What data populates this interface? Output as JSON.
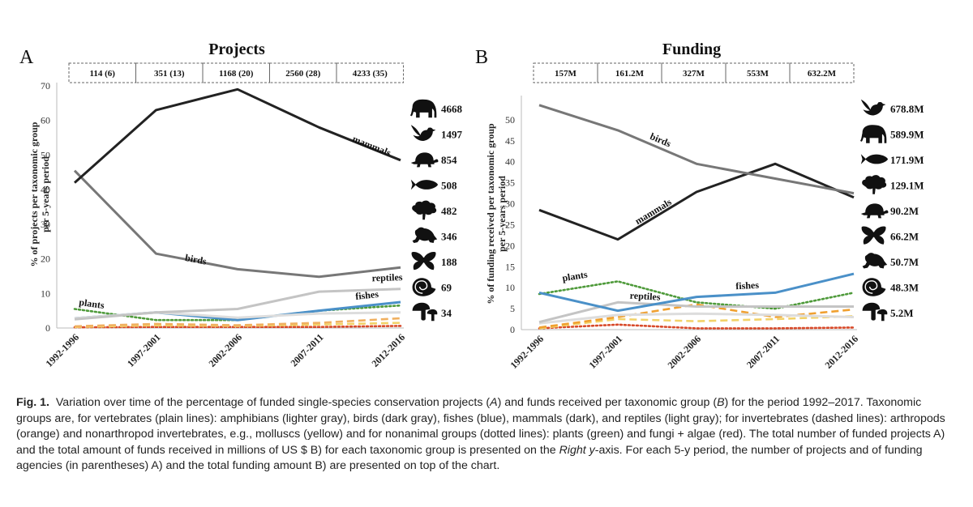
{
  "chart_data": [
    {
      "type": "line",
      "panel": "A",
      "title": "Projects",
      "ylabel": "% of projects per taxonomic group per 5-years period",
      "ylim": [
        0,
        70
      ],
      "yticks": [
        0,
        10,
        20,
        30,
        40,
        50,
        60,
        70
      ],
      "categories": [
        "1992-1996",
        "1997-2001",
        "2002-2006",
        "2007-2011",
        "2012-2016"
      ],
      "top_boxes": [
        "114 (6)",
        "351 (13)",
        "1168 (20)",
        "2560 (28)",
        "4233 (35)"
      ],
      "series": [
        {
          "name": "mammals",
          "style": "solid",
          "color": "#222222",
          "values": [
            42,
            63,
            69,
            58,
            48.5
          ]
        },
        {
          "name": "birds",
          "style": "solid",
          "color": "#777777",
          "values": [
            45.5,
            21.5,
            17,
            14.8,
            17.5
          ]
        },
        {
          "name": "reptiles",
          "style": "solid",
          "color": "#c4c4c4",
          "values": [
            2.5,
            4.5,
            5.5,
            10.5,
            11.3
          ]
        },
        {
          "name": "amphibians",
          "style": "solid",
          "color": "#dddddd",
          "values": [
            2.8,
            4.5,
            3,
            4.2,
            4.5
          ]
        },
        {
          "name": "fishes",
          "style": "solid",
          "color": "#4a90c8",
          "values": [
            2.8,
            4.5,
            2.3,
            5,
            7.5
          ]
        },
        {
          "name": "plants",
          "style": "dotted",
          "color": "#4e9a3a",
          "values": [
            5.5,
            2.3,
            2.3,
            5,
            6.5
          ]
        },
        {
          "name": "arthropods",
          "style": "dashed",
          "color": "#f0b060",
          "values": [
            0.5,
            1.2,
            0.8,
            1.5,
            2.8
          ]
        },
        {
          "name": "nonarthropod invertebrates",
          "style": "dashed",
          "color": "#f2d268",
          "values": [
            0.3,
            0.8,
            0.6,
            1.0,
            1.5
          ]
        },
        {
          "name": "fungi + algae",
          "style": "dotted",
          "color": "#d84a2a",
          "values": [
            0.2,
            0.3,
            0.3,
            0.3,
            0.6
          ]
        }
      ],
      "line_labels": [
        {
          "text": "mammals",
          "at": [
            3.4,
            54
          ]
        },
        {
          "text": "birds",
          "at": [
            1.35,
            19.5
          ]
        },
        {
          "text": "reptiles",
          "at": [
            3.65,
            13.5
          ]
        },
        {
          "text": "fishes",
          "at": [
            3.45,
            8.2
          ]
        },
        {
          "text": "plants",
          "at": [
            0.05,
            6.6
          ]
        }
      ],
      "totals": [
        {
          "icon": "elephant-icon",
          "value": "4668"
        },
        {
          "icon": "bird-icon",
          "value": "1497"
        },
        {
          "icon": "turtle-icon",
          "value": "854"
        },
        {
          "icon": "fish-icon",
          "value": "508"
        },
        {
          "icon": "tree-icon",
          "value": "482"
        },
        {
          "icon": "frog-icon",
          "value": "346"
        },
        {
          "icon": "butterfly-icon",
          "value": "188"
        },
        {
          "icon": "nautilus-icon",
          "value": "69"
        },
        {
          "icon": "mushroom-icon",
          "value": "34"
        }
      ]
    },
    {
      "type": "line",
      "panel": "B",
      "title": "Funding",
      "ylabel": "% of funding received per taxonomic group per 5-years period",
      "ylim": [
        0,
        55
      ],
      "yticks": [
        0,
        5,
        10,
        15,
        20,
        25,
        30,
        35,
        40,
        45,
        50
      ],
      "categories": [
        "1992-1996",
        "1997-2001",
        "2002-2006",
        "2007-2011",
        "2012-2016"
      ],
      "top_boxes": [
        "157M",
        "161.2M",
        "327M",
        "553M",
        "632.2M"
      ],
      "series": [
        {
          "name": "birds",
          "style": "solid",
          "color": "#777777",
          "values": [
            53.5,
            47.5,
            39.5,
            36,
            32.5
          ]
        },
        {
          "name": "mammals",
          "style": "solid",
          "color": "#222222",
          "values": [
            28.5,
            21.5,
            32.8,
            39.5,
            31.5
          ]
        },
        {
          "name": "fishes",
          "style": "solid",
          "color": "#4a90c8",
          "values": [
            8.8,
            4.5,
            7.8,
            8.8,
            13.3
          ]
        },
        {
          "name": "reptiles",
          "style": "solid",
          "color": "#c4c4c4",
          "values": [
            1.8,
            6.5,
            5.5,
            5.5,
            5.5
          ]
        },
        {
          "name": "amphibians",
          "style": "solid",
          "color": "#dddddd",
          "values": [
            1.5,
            3.5,
            3.8,
            3.5,
            3
          ]
        },
        {
          "name": "plants",
          "style": "dotted",
          "color": "#4e9a3a",
          "values": [
            8.5,
            11.5,
            6.5,
            5,
            8.8
          ]
        },
        {
          "name": "arthropods",
          "style": "dashed",
          "color": "#f0a030",
          "values": [
            0.5,
            3,
            6,
            3,
            4.8
          ]
        },
        {
          "name": "nonarthropod invertebrates",
          "style": "dashed",
          "color": "#f2d268",
          "values": [
            0.3,
            2.5,
            2,
            2.5,
            3.2
          ]
        },
        {
          "name": "fungi + algae",
          "style": "dotted",
          "color": "#d84a2a",
          "values": [
            0.3,
            1.2,
            0.3,
            0.3,
            0.5
          ]
        }
      ],
      "line_labels": [
        {
          "text": "birds",
          "at": [
            1.4,
            45.5
          ]
        },
        {
          "text": "mammals",
          "at": [
            1.25,
            25
          ]
        },
        {
          "text": "fishes",
          "at": [
            2.5,
            9.6
          ]
        },
        {
          "text": "reptiles",
          "at": [
            1.15,
            7.4
          ]
        },
        {
          "text": "plants",
          "at": [
            0.3,
            11.5
          ]
        }
      ],
      "totals": [
        {
          "icon": "bird-icon",
          "value": "678.8M"
        },
        {
          "icon": "elephant-icon",
          "value": "589.9M"
        },
        {
          "icon": "fish-icon",
          "value": "171.9M"
        },
        {
          "icon": "tree-icon",
          "value": "129.1M"
        },
        {
          "icon": "turtle-icon",
          "value": "90.2M"
        },
        {
          "icon": "butterfly-icon",
          "value": "66.2M"
        },
        {
          "icon": "frog-icon",
          "value": "50.7M"
        },
        {
          "icon": "nautilus-icon",
          "value": "48.3M"
        },
        {
          "icon": "mushroom-icon",
          "value": "5.2M"
        }
      ]
    }
  ],
  "caption": {
    "lead": "Fig. 1.",
    "parts": [
      {
        "t": "Variation over time of the percentage of funded single-species conservation projects ("
      },
      {
        "t": "A",
        "i": true
      },
      {
        "t": ") and funds received per taxonomic group ("
      },
      {
        "t": "B",
        "i": true
      },
      {
        "t": ") for the period 1992–2017. Taxonomic groups are, for vertebrates (plain lines): amphibians (lighter gray), birds (dark gray), fishes (blue), mammals (dark), and reptiles (light gray); for invertebrates (dashed lines): arthropods (orange) and nonarthropod invertebrates, e.g., molluscs (yellow) and for nonanimal groups (dotted lines): plants (green) and fungi + algae (red). The total number of funded projects A) and the total amount of funds received in millions of US $ B) for each taxonomic group is presented on the "
      },
      {
        "t": "Right y",
        "i": true
      },
      {
        "t": "-axis. For each 5-y period, the number of projects and of funding agencies (in parentheses) A) and the total funding amount B) are presented on top of the chart."
      }
    ]
  }
}
